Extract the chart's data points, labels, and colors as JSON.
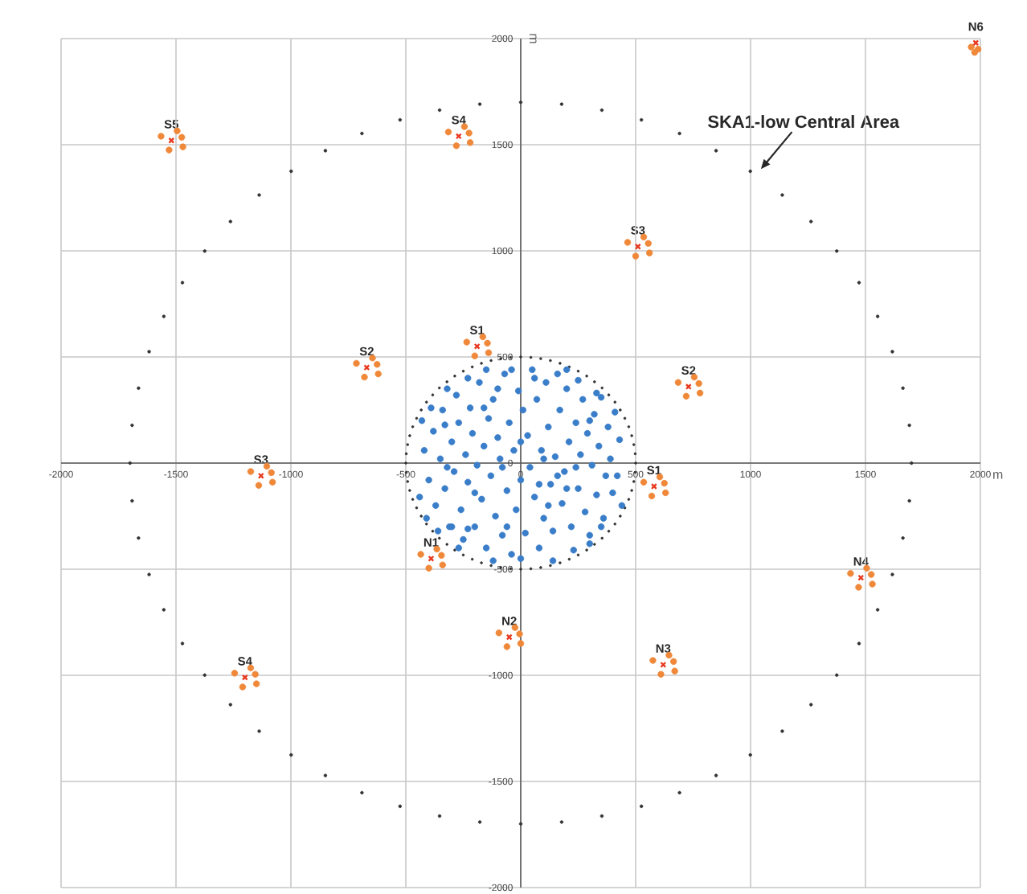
{
  "chart_data": {
    "type": "scatter",
    "xlabel": "m",
    "ylabel": "m",
    "xlim": [
      -2000,
      2000
    ],
    "ylim": [
      -2000,
      2000
    ],
    "xticks": [
      -2000,
      -1500,
      -1000,
      -500,
      0,
      500,
      1000,
      1500,
      2000
    ],
    "yticks": [
      -2000,
      -1500,
      -1000,
      -500,
      0,
      500,
      1000,
      1500,
      2000
    ],
    "grid": true,
    "series": [
      {
        "type": "scatter",
        "marker": "circle",
        "color": "#333333",
        "x": [
          1700,
          1691,
          1663,
          1617,
          1553,
          1472,
          1375,
          1263,
          1138,
          999,
          850,
          691,
          525,
          353,
          178,
          0,
          -178,
          -353,
          -525,
          -691,
          -850,
          -999,
          -1138,
          -1263,
          -1375,
          -1472,
          -1553,
          -1617,
          -1663,
          -1691,
          -1700,
          -1691,
          -1663,
          -1617,
          -1553,
          -1472,
          -1375,
          -1263,
          -1138,
          -999,
          -850,
          -691,
          -525,
          -353,
          -178,
          0,
          178,
          353,
          525,
          691,
          850,
          999,
          1138,
          1263,
          1375,
          1472,
          1553,
          1617,
          1663,
          1691
        ],
        "values": [
          0,
          178,
          353,
          525,
          691,
          850,
          999,
          1138,
          1263,
          1375,
          1472,
          1553,
          1617,
          1663,
          1691,
          1700,
          1691,
          1663,
          1617,
          1553,
          1472,
          1375,
          1263,
          1138,
          999,
          850,
          691,
          525,
          353,
          178,
          0,
          -178,
          -353,
          -525,
          -691,
          -850,
          -999,
          -1138,
          -1263,
          -1375,
          -1472,
          -1553,
          -1617,
          -1663,
          -1691,
          -1700,
          -1691,
          -1663,
          -1617,
          -1553,
          -1472,
          -1375,
          -1263,
          -1138,
          -999,
          -850,
          -691,
          -525,
          -353,
          -178
        ]
      },
      {
        "type": "scatter",
        "marker": "circle",
        "color": "#333333",
        "x": [
          500,
          498,
          492,
          483,
          470,
          453,
          433,
          410,
          383,
          354,
          321,
          287,
          250,
          211,
          171,
          129,
          87,
          44,
          0,
          -44,
          -87,
          -129,
          -171,
          -211,
          -250,
          -287,
          -321,
          -354,
          -383,
          -410,
          -433,
          -453,
          -470,
          -483,
          -492,
          -498,
          -500,
          -498,
          -492,
          -483,
          -470,
          -453,
          -433,
          -410,
          -383,
          -354,
          -321,
          -287,
          -250,
          -211,
          -171,
          -129,
          -87,
          -44,
          0,
          44,
          87,
          129,
          171,
          211,
          250,
          287,
          321,
          354,
          383,
          410,
          433,
          453,
          470,
          483,
          492,
          498
        ],
        "values": [
          0,
          44,
          87,
          129,
          171,
          211,
          250,
          287,
          321,
          354,
          383,
          410,
          433,
          453,
          470,
          483,
          492,
          498,
          500,
          498,
          492,
          483,
          470,
          453,
          433,
          410,
          383,
          354,
          321,
          287,
          250,
          211,
          171,
          129,
          87,
          44,
          0,
          -44,
          -87,
          -129,
          -171,
          -211,
          -250,
          -287,
          -321,
          -354,
          -383,
          -410,
          -433,
          -453,
          -470,
          -483,
          -492,
          -498,
          -500,
          -498,
          -492,
          -483,
          -470,
          -453,
          -433,
          -410,
          -383,
          -354,
          -321,
          -287,
          -250,
          -211,
          -171,
          -129,
          -87,
          -44
        ]
      },
      {
        "type": "scatter",
        "marker": "circle",
        "color": "#3a7dc9",
        "x": [
          -420,
          -400,
          -380,
          -370,
          -350,
          -340,
          -330,
          -310,
          -300,
          -290,
          -280,
          -270,
          -260,
          -250,
          -240,
          -230,
          -220,
          -210,
          -200,
          -190,
          -180,
          -170,
          -160,
          -150,
          -140,
          -130,
          -120,
          -110,
          -100,
          -90,
          -80,
          -70,
          -60,
          -50,
          -40,
          -30,
          -20,
          -10,
          0,
          10,
          20,
          30,
          40,
          50,
          60,
          70,
          80,
          90,
          100,
          110,
          120,
          130,
          140,
          150,
          160,
          170,
          180,
          190,
          200,
          210,
          220,
          230,
          240,
          250,
          260,
          270,
          280,
          290,
          300,
          310,
          320,
          330,
          340,
          350,
          360,
          370,
          380,
          390,
          400,
          410,
          420,
          430,
          440,
          -440,
          -430,
          -410,
          -390,
          -360,
          -320,
          -230,
          -150,
          60,
          200,
          330,
          250,
          -270,
          -120,
          0,
          140,
          300,
          -60,
          160,
          -200,
          100,
          -320,
          300,
          -100,
          80,
          -230,
          -40,
          200,
          -330,
          120,
          -160,
          240,
          0,
          -80,
          350,
          -300
        ],
        "values": [
          60,
          -80,
          150,
          -200,
          20,
          250,
          -120,
          -300,
          100,
          -40,
          320,
          190,
          -220,
          -360,
          40,
          -90,
          260,
          140,
          -300,
          -10,
          380,
          -170,
          80,
          -400,
          210,
          -60,
          300,
          -250,
          120,
          20,
          -340,
          420,
          -130,
          190,
          -430,
          60,
          -220,
          340,
          -80,
          250,
          -330,
          130,
          -20,
          440,
          -160,
          300,
          -400,
          60,
          -260,
          380,
          170,
          -100,
          -320,
          30,
          420,
          250,
          -190,
          -40,
          350,
          100,
          -300,
          -410,
          190,
          -120,
          40,
          300,
          -230,
          140,
          -340,
          -10,
          230,
          -150,
          80,
          310,
          -260,
          -60,
          170,
          20,
          -140,
          240,
          -60,
          110,
          -200,
          -160,
          200,
          -260,
          260,
          -320,
          350,
          400,
          440,
          400,
          440,
          330,
          390,
          -400,
          -460,
          -450,
          -460,
          -380,
          -300,
          -60,
          -140,
          20,
          -20,
          200,
          350,
          -100,
          -310,
          440,
          -120,
          180,
          -200,
          260,
          -20,
          100,
          -20,
          -300,
          -300
        ]
      },
      {
        "type": "scatter",
        "marker": "circle",
        "color": "#f0883a",
        "x": [
          -1565,
          -1475,
          -1530,
          -1495,
          -1470,
          -315,
          -225,
          -280,
          -245,
          -220,
          -235,
          -145,
          -200,
          -165,
          -140,
          -715,
          -625,
          -680,
          -645,
          -620,
          465,
          555,
          500,
          535,
          560,
          685,
          775,
          720,
          755,
          780,
          1960,
          1990,
          1975,
          -1175,
          -1085,
          -1140,
          -1105,
          -1080,
          -435,
          -345,
          -400,
          -365,
          -340,
          -95,
          -5,
          -60,
          -25,
          0,
          -1245,
          -1155,
          -1210,
          -1175,
          -1150,
          535,
          625,
          570,
          605,
          630,
          575,
          665,
          610,
          645,
          670,
          1435,
          1525,
          1470,
          1505,
          1530
        ],
        "values": [
          1540,
          1535,
          1475,
          1565,
          1490,
          1560,
          1555,
          1495,
          1585,
          1510,
          570,
          565,
          505,
          595,
          520,
          470,
          465,
          405,
          495,
          420,
          1040,
          1035,
          975,
          1065,
          990,
          380,
          375,
          315,
          405,
          330,
          1960,
          1950,
          1935,
          -40,
          -45,
          -105,
          -15,
          -90,
          -430,
          -435,
          -495,
          -405,
          -480,
          -800,
          -805,
          -865,
          -775,
          -850,
          -990,
          -995,
          -1055,
          -965,
          -1040,
          -90,
          -95,
          -155,
          -65,
          -140,
          -930,
          -935,
          -995,
          -905,
          -980,
          -520,
          -525,
          -585,
          -495,
          -570
        ]
      },
      {
        "type": "scatter",
        "marker": "cross",
        "color": "#e8381f",
        "x": [
          -1520,
          -270,
          -190,
          -670,
          510,
          730,
          1980,
          -1130,
          -390,
          -50,
          -1200,
          580,
          620,
          1480
        ],
        "values": [
          1520,
          1540,
          550,
          450,
          1020,
          360,
          1980,
          -60,
          -450,
          -820,
          -1010,
          -110,
          -950,
          -540
        ]
      }
    ],
    "annotations": [
      {
        "text": "S5",
        "x": -1520,
        "y": 1520
      },
      {
        "text": "S4",
        "x": -270,
        "y": 1540
      },
      {
        "text": "S1",
        "x": -190,
        "y": 550
      },
      {
        "text": "S2",
        "x": -670,
        "y": 450
      },
      {
        "text": "S3",
        "x": 510,
        "y": 1020
      },
      {
        "text": "S2",
        "x": 730,
        "y": 360
      },
      {
        "text": "N6",
        "x": 1980,
        "y": 1980
      },
      {
        "text": "S3",
        "x": -1130,
        "y": -60
      },
      {
        "text": "N1",
        "x": -390,
        "y": -450
      },
      {
        "text": "N2",
        "x": -50,
        "y": -820
      },
      {
        "text": "S4",
        "x": -1200,
        "y": -1010
      },
      {
        "text": "S1",
        "x": 580,
        "y": -110
      },
      {
        "text": "N3",
        "x": 620,
        "y": -950
      },
      {
        "text": "N4",
        "x": 1480,
        "y": -540
      },
      "SKA1-low Central Area"
    ]
  }
}
